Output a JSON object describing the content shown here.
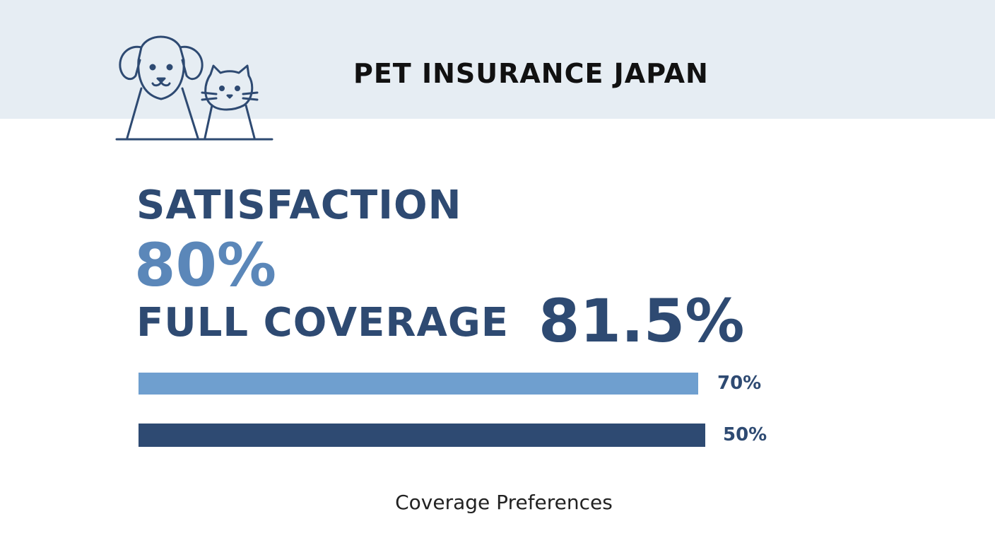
{
  "header": {
    "title": "PET INSURANCE JAPAN"
  },
  "stats": [
    {
      "label": "SATISFACTION",
      "value": "80%"
    },
    {
      "label": "FULL COVERAGE",
      "value": "81.5%"
    }
  ],
  "bars": [
    {
      "label": "70%",
      "color": "#6f9fcf"
    },
    {
      "label": "50%",
      "color": "#2e4a72"
    }
  ],
  "caption": "Coverage Preferences"
}
